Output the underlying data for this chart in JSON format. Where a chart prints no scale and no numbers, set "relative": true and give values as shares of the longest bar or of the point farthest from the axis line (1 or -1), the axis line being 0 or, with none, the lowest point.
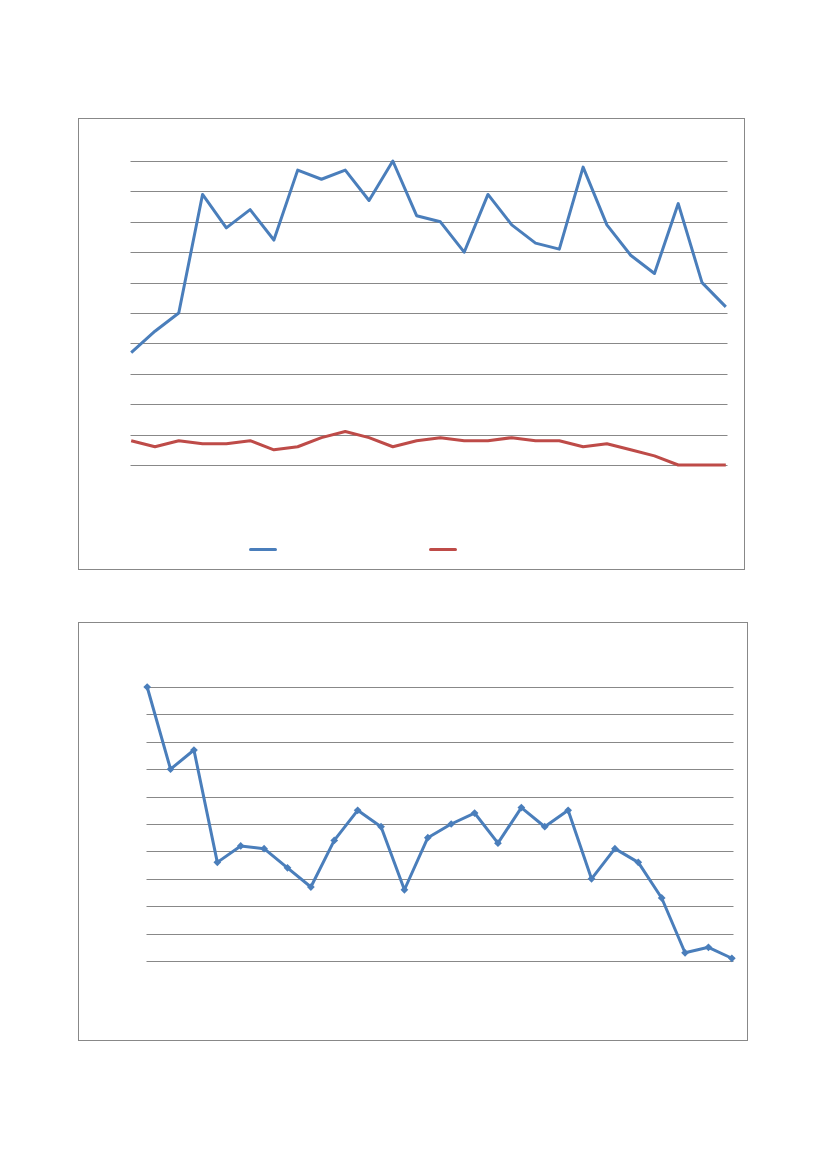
{
  "chart_data": [
    {
      "type": "line",
      "relative": true,
      "grid": "y",
      "line_style": "solid",
      "categories": [
        null,
        null,
        null,
        null,
        null,
        null,
        null,
        null,
        null,
        null,
        null,
        null,
        null,
        null,
        null,
        null,
        null,
        null,
        null,
        null,
        null,
        null,
        null,
        null,
        null,
        null
      ],
      "series": [
        {
          "color": "#4a7ebb",
          "values": [
            0.37,
            0.44,
            0.5,
            0.89,
            0.78,
            0.84,
            0.74,
            0.97,
            0.94,
            0.97,
            0.87,
            1,
            0.82,
            0.8,
            0.7,
            0.89,
            0.79,
            0.73,
            0.71,
            0.98,
            0.79,
            0.69,
            0.63,
            0.86,
            0.6,
            0.52
          ]
        },
        {
          "color": "#be4b48",
          "values": [
            0.08,
            0.06,
            0.08,
            0.07,
            0.07,
            0.08,
            0.05,
            0.06,
            0.09,
            0.11,
            0.09,
            0.06,
            0.08,
            0.09,
            0.08,
            0.08,
            0.09,
            0.08,
            0.08,
            0.06,
            0.07,
            0.05,
            0.03,
            0,
            0,
            0
          ]
        }
      ]
    },
    {
      "type": "line",
      "relative": true,
      "grid": "y",
      "marker": "diamond",
      "line_style": "solid",
      "categories": [
        null,
        null,
        null,
        null,
        null,
        null,
        null,
        null,
        null,
        null,
        null,
        null,
        null,
        null,
        null,
        null,
        null,
        null,
        null,
        null,
        null,
        null,
        null,
        null,
        null,
        null
      ],
      "series": [
        {
          "color": "#4a7ebb",
          "values": [
            1,
            0.7,
            0.77,
            0.36,
            0.42,
            0.41,
            0.34,
            0.27,
            0.44,
            0.55,
            0.49,
            0.26,
            0.45,
            0.5,
            0.54,
            0.43,
            0.56,
            0.49,
            0.55,
            0.3,
            0.41,
            0.36,
            0.23,
            0.03,
            0.05,
            0.01
          ]
        }
      ]
    }
  ]
}
